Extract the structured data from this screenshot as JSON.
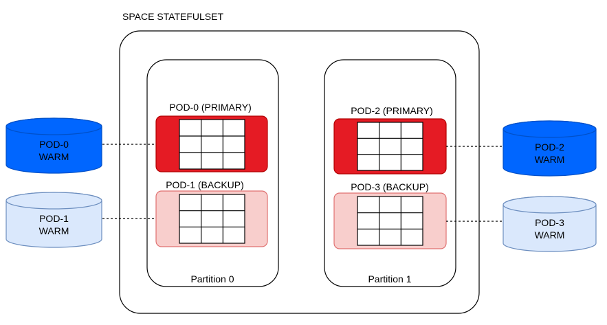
{
  "diagram": {
    "title": "SPACE STATEFULSET",
    "partitions": [
      {
        "label": "Partition 0",
        "primary": {
          "label": "POD-0 (PRIMARY)",
          "fill": "#e51b24",
          "stroke": "#b20000"
        },
        "backup": {
          "label": "POD-1 (BACKUP)",
          "fill": "#f8cecc",
          "stroke": "#e07070"
        }
      },
      {
        "label": "Partition 1",
        "primary": {
          "label": "POD-2 (PRIMARY)",
          "fill": "#e51b24",
          "stroke": "#b20000"
        },
        "backup": {
          "label": "POD-3 (BACKUP)",
          "fill": "#f8cecc",
          "stroke": "#e07070"
        }
      }
    ],
    "warm_stores": [
      {
        "line1": "POD-0",
        "line2": "WARM",
        "style": "dark"
      },
      {
        "line1": "POD-1",
        "line2": "WARM",
        "style": "light"
      },
      {
        "line1": "POD-2",
        "line2": "WARM",
        "style": "dark"
      },
      {
        "line1": "POD-3",
        "line2": "WARM",
        "style": "light"
      }
    ],
    "colors": {
      "warm_dark_fill": "#0066ff",
      "warm_dark_stroke": "#0050c8",
      "warm_light_fill": "#dae8fc",
      "warm_light_stroke": "#6c8ebf",
      "outline": "#000000"
    }
  }
}
